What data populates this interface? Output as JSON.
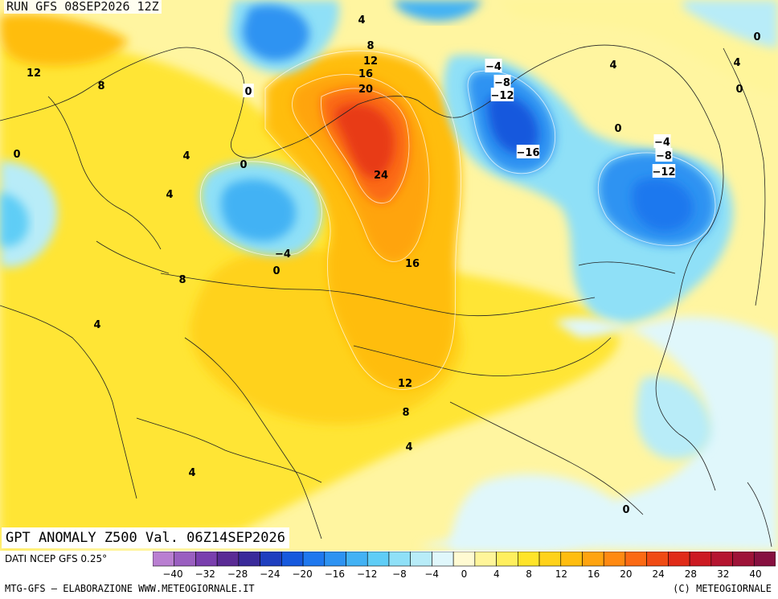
{
  "header": {
    "run": "RUN GFS 08SEP2026 12Z"
  },
  "map": {
    "title": "GPT ANOMALY Z500 Val. 06Z14SEP2026",
    "contour_labels": [
      {
        "text": "4"
      },
      {
        "text": "8"
      },
      {
        "text": "12"
      },
      {
        "text": "16"
      },
      {
        "text": "20"
      },
      {
        "text": "24"
      },
      {
        "text": "0"
      },
      {
        "text": "-4"
      },
      {
        "text": "-8"
      },
      {
        "text": "-12"
      },
      {
        "text": "-16"
      },
      {
        "text": "-4"
      },
      {
        "text": "-8"
      },
      {
        "text": "-12"
      },
      {
        "text": "0"
      },
      {
        "text": "0"
      },
      {
        "text": "4"
      },
      {
        "text": "0"
      },
      {
        "text": "4"
      },
      {
        "text": "12"
      },
      {
        "text": "8"
      },
      {
        "text": "0"
      },
      {
        "text": "4"
      },
      {
        "text": "4"
      },
      {
        "text": "0"
      },
      {
        "text": "-4"
      },
      {
        "text": "0"
      },
      {
        "text": "8"
      },
      {
        "text": "16"
      },
      {
        "text": "4"
      },
      {
        "text": "12"
      },
      {
        "text": "8"
      },
      {
        "text": "4"
      },
      {
        "text": "4"
      },
      {
        "text": "0"
      }
    ]
  },
  "legend": {
    "ticks": [
      "-40",
      "-32",
      "-28",
      "-24",
      "-20",
      "-16",
      "-12",
      "-8",
      "-4",
      "0",
      "4",
      "8",
      "12",
      "16",
      "20",
      "24",
      "28",
      "32",
      "40"
    ],
    "colors": [
      "#b97fd1",
      "#9a5fc0",
      "#7a3fae",
      "#5a2b95",
      "#3a2a9a",
      "#1f3fbf",
      "#1659dd",
      "#1f78ee",
      "#2e93f2",
      "#43b2f4",
      "#5fcdf6",
      "#8fe0f7",
      "#b8ecf8",
      "#e0f7fb",
      "#fffad2",
      "#fff59a",
      "#ffef5e",
      "#ffe42a",
      "#ffd21a",
      "#ffbd0f",
      "#ffa410",
      "#ff8a12",
      "#fb6a14",
      "#f04b14",
      "#e02b18",
      "#cc1a22",
      "#b51530",
      "#9e1338",
      "#871040"
    ]
  },
  "footer": {
    "source": "DATI NCEP GFS 0.25°",
    "credit_left": "MTG-GFS — ELABORAZIONE WWW.METEOGIORNALE.IT",
    "credit_right": "(C) METEOGIORNALE"
  }
}
